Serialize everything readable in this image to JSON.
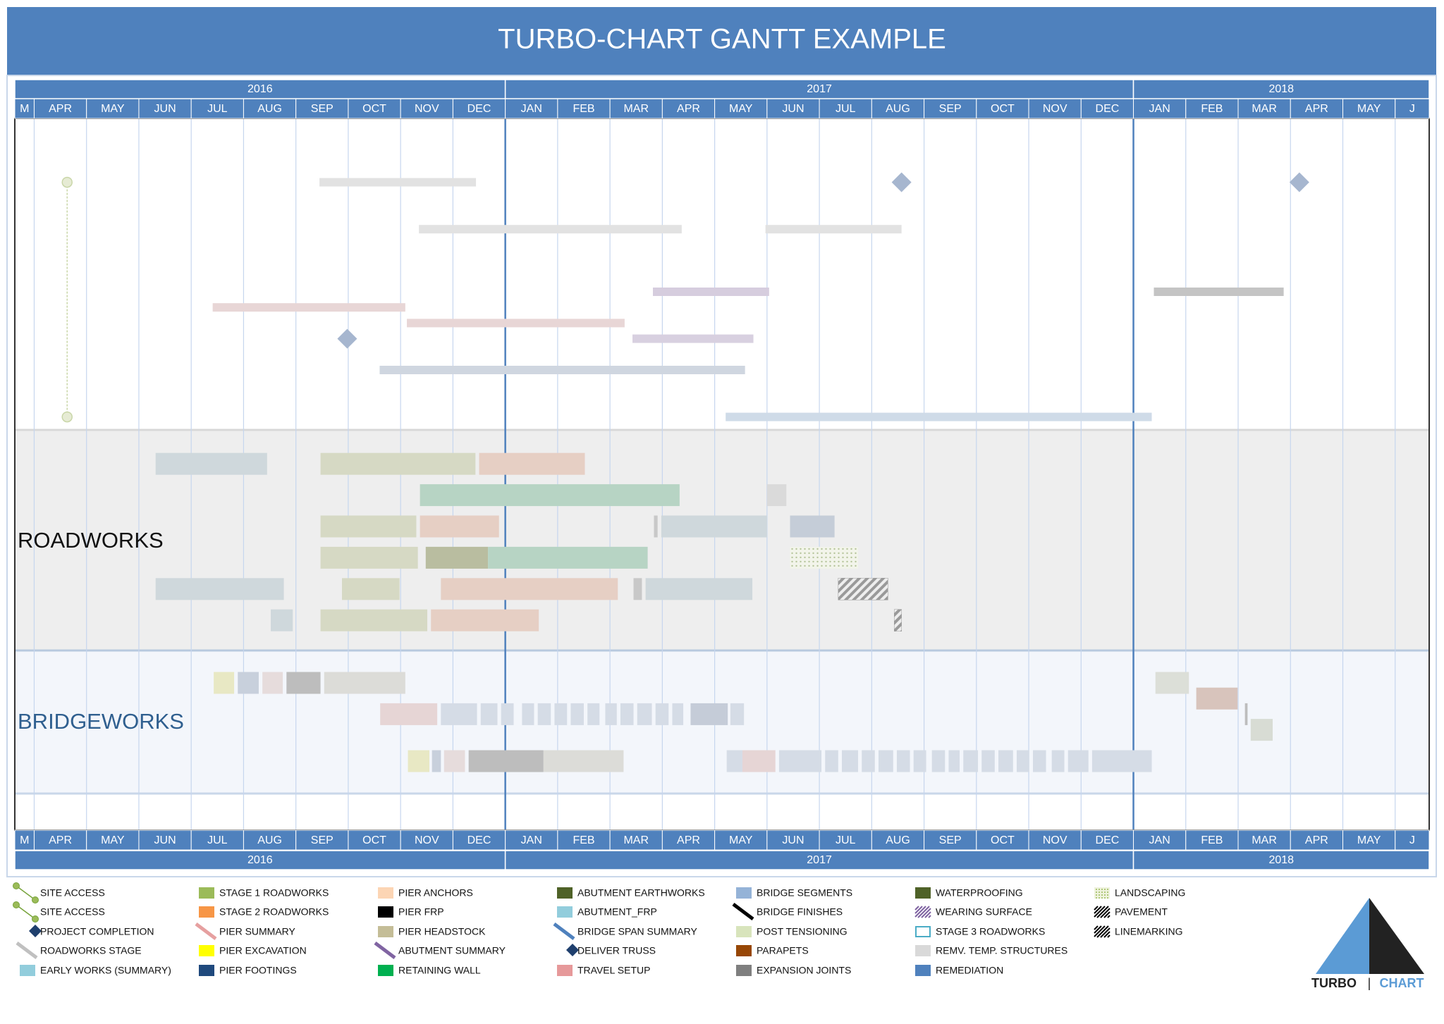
{
  "chart_data": {
    "type": "gantt",
    "title": "TURBO-CHART GANTT EXAMPLE",
    "categories": [
      "M",
      "APR",
      "MAY",
      "JUN",
      "JUL",
      "AUG",
      "SEP",
      "OCT",
      "NOV",
      "DEC",
      "JAN",
      "FEB",
      "MAR",
      "APR",
      "MAY",
      "JUN",
      "JUL",
      "AUG",
      "SEP",
      "OCT",
      "NOV",
      "DEC",
      "JAN",
      "FEB",
      "MAR",
      "APR",
      "MAY",
      "J"
    ],
    "years": [
      "2016",
      "2017",
      "2018"
    ],
    "xlim": [
      0.63,
      27.65
    ],
    "sections": [
      "ROADWORKS",
      "BRIDGEWORKS"
    ],
    "tasks": [
      {
        "kind": "link",
        "start": 1.63,
        "row": 0,
        "row2": 15,
        "color": "#c9d6a8"
      },
      {
        "kind": "bar",
        "row": 0,
        "start": 6.45,
        "end": 9.44,
        "color": "#e2e2e2"
      },
      {
        "kind": "diamond",
        "row": 0,
        "at": 17.57,
        "color": "#a6b6cf"
      },
      {
        "kind": "diamond",
        "row": 0,
        "at": 25.17,
        "color": "#a6b6cf"
      },
      {
        "kind": "bar",
        "row": 3,
        "start": 8.35,
        "end": 13.37,
        "color": "#e2e2e2"
      },
      {
        "kind": "bar",
        "row": 3,
        "start": 14.97,
        "end": 17.57,
        "color": "#e2e2e2"
      },
      {
        "kind": "bar",
        "row": 7,
        "start": 12.82,
        "end": 15.04,
        "color": "#d6cdde"
      },
      {
        "kind": "bar",
        "row": 7,
        "start": 22.39,
        "end": 24.87,
        "color": "#c4c4c4"
      },
      {
        "kind": "bar",
        "row": 8,
        "start": 4.41,
        "end": 8.09,
        "color": "#e8d6d6"
      },
      {
        "kind": "bar",
        "row": 9,
        "start": 8.12,
        "end": 12.28,
        "color": "#e8d6d6"
      },
      {
        "kind": "diamond",
        "row": 10,
        "at": 6.98,
        "color": "#a6b6cf"
      },
      {
        "kind": "bar",
        "row": 10,
        "start": 12.43,
        "end": 14.74,
        "color": "#d8d0e0"
      },
      {
        "kind": "bar",
        "row": 12,
        "start": 7.6,
        "end": 14.58,
        "color": "#cfd6e0"
      },
      {
        "kind": "bar",
        "row": 15,
        "start": 14.21,
        "end": 22.35,
        "color": "#cfdbe8"
      },
      {
        "kind": "bar",
        "row": 18,
        "start": 3.32,
        "end": 5.45,
        "color": "#cfd8dc"
      },
      {
        "kind": "bar",
        "row": 18,
        "start": 6.47,
        "end": 9.43,
        "color": "#d6d9c4"
      },
      {
        "kind": "bar",
        "row": 18,
        "start": 9.5,
        "end": 11.52,
        "color": "#e6cfc4"
      },
      {
        "kind": "bar",
        "row": 20,
        "start": 8.37,
        "end": 13.33,
        "color": "#b7d4c4"
      },
      {
        "kind": "bar",
        "row": 20,
        "start": 15.0,
        "end": 15.37,
        "color": "#dadada"
      },
      {
        "kind": "bar",
        "row": 22,
        "start": 6.47,
        "end": 8.3,
        "color": "#d6d9c4"
      },
      {
        "kind": "bar",
        "row": 22,
        "start": 8.37,
        "end": 9.88,
        "color": "#e6cfc4"
      },
      {
        "kind": "bar",
        "row": 22,
        "start": 12.84,
        "end": 12.91,
        "color": "#c8c8c8"
      },
      {
        "kind": "bar",
        "row": 22,
        "start": 12.98,
        "end": 15.0,
        "color": "#cfd8dc"
      },
      {
        "kind": "bar",
        "row": 22,
        "start": 15.44,
        "end": 16.29,
        "color": "#c5cdd8"
      },
      {
        "kind": "bar",
        "row": 24,
        "start": 6.47,
        "end": 8.33,
        "color": "#d6d9c4"
      },
      {
        "kind": "bar",
        "row": 24,
        "start": 8.48,
        "end": 9.67,
        "color": "#b9bda0"
      },
      {
        "kind": "bar",
        "row": 24,
        "start": 9.67,
        "end": 12.72,
        "color": "#b7d4c4"
      },
      {
        "kind": "dots",
        "row": 24,
        "start": 15.44,
        "end": 16.74,
        "color": "#b5c49a"
      },
      {
        "kind": "bar",
        "row": 26,
        "start": 3.32,
        "end": 5.77,
        "color": "#cfd8dc"
      },
      {
        "kind": "bar",
        "row": 26,
        "start": 6.88,
        "end": 7.98,
        "color": "#d6d9c4"
      },
      {
        "kind": "bar",
        "row": 26,
        "start": 8.77,
        "end": 12.15,
        "color": "#e6cfc4"
      },
      {
        "kind": "bar",
        "row": 26,
        "start": 12.45,
        "end": 12.61,
        "color": "#c8c8c8"
      },
      {
        "kind": "bar",
        "row": 26,
        "start": 12.68,
        "end": 14.72,
        "color": "#cfd8dc"
      },
      {
        "kind": "hatch",
        "row": 26,
        "start": 16.36,
        "end": 17.31,
        "color": "#9a9a9a"
      },
      {
        "kind": "bar",
        "row": 28,
        "start": 5.52,
        "end": 5.94,
        "color": "#cfd8dc"
      },
      {
        "kind": "bar",
        "row": 28,
        "start": 6.47,
        "end": 8.51,
        "color": "#d6d9c4"
      },
      {
        "kind": "bar",
        "row": 28,
        "start": 8.58,
        "end": 10.64,
        "color": "#e6cfc4"
      },
      {
        "kind": "hatch",
        "row": 28,
        "start": 17.43,
        "end": 17.57,
        "color": "#9a9a9a"
      },
      {
        "kind": "bar",
        "row": 32,
        "start": 4.43,
        "end": 4.82,
        "color": "#e8e8c4"
      },
      {
        "kind": "bar",
        "row": 32,
        "start": 4.89,
        "end": 5.29,
        "color": "#c8d0dc"
      },
      {
        "kind": "bar",
        "row": 32,
        "start": 5.36,
        "end": 5.75,
        "color": "#e6dcdc"
      },
      {
        "kind": "bar",
        "row": 32,
        "start": 5.82,
        "end": 6.47,
        "color": "#bdbdbd"
      },
      {
        "kind": "bar",
        "row": 32,
        "start": 6.54,
        "end": 8.09,
        "color": "#dcdcd8"
      },
      {
        "kind": "bar",
        "row": 32,
        "start": 22.42,
        "end": 23.06,
        "color": "#dcdfd8"
      },
      {
        "kind": "bar",
        "row": 33,
        "start": 23.2,
        "end": 23.99,
        "color": "#d8c4bc"
      },
      {
        "kind": "bar",
        "row": 34,
        "start": 7.61,
        "end": 8.7,
        "color": "#e6d5d5"
      },
      {
        "kind": "bar",
        "row": 34,
        "start": 8.77,
        "end": 9.46,
        "color": "#d5dce6"
      },
      {
        "kind": "bar",
        "row": 34,
        "start": 9.53,
        "end": 9.85,
        "color": "#d5dce6"
      },
      {
        "kind": "bar",
        "row": 34,
        "start": 9.92,
        "end": 10.16,
        "color": "#d5dce6"
      },
      {
        "kind": "bar",
        "row": 34,
        "start": 10.32,
        "end": 10.55,
        "color": "#d5dce6"
      },
      {
        "kind": "bar",
        "row": 34,
        "start": 10.62,
        "end": 10.87,
        "color": "#d5dce6"
      },
      {
        "kind": "bar",
        "row": 34,
        "start": 10.94,
        "end": 11.18,
        "color": "#d5dce6"
      },
      {
        "kind": "bar",
        "row": 34,
        "start": 11.25,
        "end": 11.5,
        "color": "#d5dce6"
      },
      {
        "kind": "bar",
        "row": 34,
        "start": 11.57,
        "end": 11.8,
        "color": "#d5dce6"
      },
      {
        "kind": "bar",
        "row": 34,
        "start": 11.91,
        "end": 12.13,
        "color": "#d5dce6"
      },
      {
        "kind": "bar",
        "row": 34,
        "start": 12.2,
        "end": 12.45,
        "color": "#d5dce6"
      },
      {
        "kind": "bar",
        "row": 34,
        "start": 12.52,
        "end": 12.8,
        "color": "#d5dce6"
      },
      {
        "kind": "bar",
        "row": 34,
        "start": 12.87,
        "end": 13.12,
        "color": "#d5dce6"
      },
      {
        "kind": "bar",
        "row": 34,
        "start": 13.19,
        "end": 13.4,
        "color": "#d5dce6"
      },
      {
        "kind": "bar",
        "row": 34,
        "start": 13.54,
        "end": 14.25,
        "color": "#c5ccd8"
      },
      {
        "kind": "bar",
        "row": 34,
        "start": 14.3,
        "end": 14.56,
        "color": "#d5dce6"
      },
      {
        "kind": "bar",
        "row": 34,
        "start": 24.13,
        "end": 24.18,
        "color": "#bdbdbd"
      },
      {
        "kind": "bar",
        "row": 35,
        "start": 24.24,
        "end": 24.66,
        "color": "#d8dcd4"
      },
      {
        "kind": "bar",
        "row": 37,
        "start": 8.14,
        "end": 8.55,
        "color": "#e8e8c4"
      },
      {
        "kind": "bar",
        "row": 37,
        "start": 8.6,
        "end": 8.77,
        "color": "#c8d0dc"
      },
      {
        "kind": "bar",
        "row": 37,
        "start": 8.83,
        "end": 9.23,
        "color": "#e6dcdc"
      },
      {
        "kind": "bar",
        "row": 37,
        "start": 9.3,
        "end": 10.73,
        "color": "#bdbdbd"
      },
      {
        "kind": "bar",
        "row": 37,
        "start": 10.73,
        "end": 12.26,
        "color": "#dcdcd8"
      },
      {
        "kind": "bar",
        "row": 37,
        "start": 14.23,
        "end": 14.53,
        "color": "#d5dce6"
      },
      {
        "kind": "bar",
        "row": 37,
        "start": 14.53,
        "end": 15.16,
        "color": "#e6d5d5"
      },
      {
        "kind": "bar",
        "row": 37,
        "start": 15.23,
        "end": 16.04,
        "color": "#d5dce6"
      },
      {
        "kind": "bar",
        "row": 37,
        "start": 16.11,
        "end": 16.36,
        "color": "#d5dce6"
      },
      {
        "kind": "bar",
        "row": 37,
        "start": 16.43,
        "end": 16.74,
        "color": "#d5dce6"
      },
      {
        "kind": "bar",
        "row": 37,
        "start": 16.81,
        "end": 17.06,
        "color": "#d5dce6"
      },
      {
        "kind": "bar",
        "row": 37,
        "start": 17.13,
        "end": 17.41,
        "color": "#d5dce6"
      },
      {
        "kind": "bar",
        "row": 37,
        "start": 17.48,
        "end": 17.73,
        "color": "#d5dce6"
      },
      {
        "kind": "bar",
        "row": 37,
        "start": 17.8,
        "end": 18.04,
        "color": "#d5dce6"
      },
      {
        "kind": "bar",
        "row": 37,
        "start": 18.15,
        "end": 18.4,
        "color": "#d5dce6"
      },
      {
        "kind": "bar",
        "row": 37,
        "start": 18.47,
        "end": 18.68,
        "color": "#d5dce6"
      },
      {
        "kind": "bar",
        "row": 37,
        "start": 18.75,
        "end": 19.03,
        "color": "#d5dce6"
      },
      {
        "kind": "bar",
        "row": 37,
        "start": 19.1,
        "end": 19.35,
        "color": "#d5dce6"
      },
      {
        "kind": "bar",
        "row": 37,
        "start": 19.42,
        "end": 19.7,
        "color": "#d5dce6"
      },
      {
        "kind": "bar",
        "row": 37,
        "start": 19.77,
        "end": 20.01,
        "color": "#d5dce6"
      },
      {
        "kind": "bar",
        "row": 37,
        "start": 20.08,
        "end": 20.33,
        "color": "#d5dce6"
      },
      {
        "kind": "bar",
        "row": 37,
        "start": 20.44,
        "end": 20.68,
        "color": "#d5dce6"
      },
      {
        "kind": "bar",
        "row": 37,
        "start": 20.75,
        "end": 21.14,
        "color": "#d5dce6"
      },
      {
        "kind": "bar",
        "row": 37,
        "start": 21.21,
        "end": 22.35,
        "color": "#d5dce6"
      }
    ]
  },
  "legend": [
    {
      "label": "SITE ACCESS",
      "icon": "link",
      "color": "#77a33a"
    },
    {
      "label": "SITE ACCESS",
      "icon": "link",
      "color": "#77a33a"
    },
    {
      "label": "PROJECT COMPLETION",
      "icon": "diamond",
      "color": "#1f3f6d"
    },
    {
      "label": "ROADWORKS STAGE",
      "icon": "diag",
      "color": "#c0c0c0"
    },
    {
      "label": "EARLY WORKS (SUMMARY)",
      "icon": "swatch",
      "color": "#92cddc"
    },
    {
      "label": "STAGE 1 ROADWORKS",
      "icon": "swatch",
      "color": "#9bbb59"
    },
    {
      "label": "STAGE 2 ROADWORKS",
      "icon": "swatch",
      "color": "#f79646"
    },
    {
      "label": "PIER SUMMARY",
      "icon": "diag",
      "color": "#e6a0a0"
    },
    {
      "label": "PIER EXCAVATION",
      "icon": "swatch",
      "color": "#ffff00"
    },
    {
      "label": "PIER FOOTINGS",
      "icon": "swatch",
      "color": "#1f497d"
    },
    {
      "label": "PIER ANCHORS",
      "icon": "swatch",
      "color": "#fcd5b4"
    },
    {
      "label": "PIER FRP",
      "icon": "swatch",
      "color": "#000000"
    },
    {
      "label": "PIER HEADSTOCK",
      "icon": "swatch",
      "color": "#c4bd97"
    },
    {
      "label": "ABUTMENT SUMMARY",
      "icon": "diag",
      "color": "#8064a2"
    },
    {
      "label": "RETAINING WALL",
      "icon": "swatch",
      "color": "#00b050"
    },
    {
      "label": "ABUTMENT EARTHWORKS",
      "icon": "swatch",
      "color": "#4f6228"
    },
    {
      "label": "ABUTMENT_FRP",
      "icon": "swatch",
      "color": "#92cddc"
    },
    {
      "label": "BRIDGE SPAN SUMMARY",
      "icon": "diag",
      "color": "#4f81bd"
    },
    {
      "label": "DELIVER TRUSS",
      "icon": "diamond",
      "color": "#1f3f6d"
    },
    {
      "label": "TRAVEL SETUP",
      "icon": "swatch",
      "color": "#e6999a"
    },
    {
      "label": "BRIDGE SEGMENTS",
      "icon": "swatch",
      "color": "#95b3d7"
    },
    {
      "label": "BRIDGE FINISHES",
      "icon": "diag",
      "color": "#000000"
    },
    {
      "label": "POST TENSIONING",
      "icon": "swatch",
      "color": "#d8e4bc"
    },
    {
      "label": "PARAPETS",
      "icon": "swatch",
      "color": "#974706"
    },
    {
      "label": "EXPANSION JOINTS",
      "icon": "swatch",
      "color": "#7f7f7f"
    },
    {
      "label": "WATERPROOFING",
      "icon": "swatch",
      "color": "#4f6228"
    },
    {
      "label": "WEARING SURFACE",
      "icon": "hatch",
      "color": "#8064a2"
    },
    {
      "label": "STAGE 3 ROADWORKS",
      "icon": "outline",
      "color": "#4bacc6"
    },
    {
      "label": "REMV. TEMP. STRUCTURES",
      "icon": "swatch",
      "color": "#d9d9d9"
    },
    {
      "label": "REMEDIATION",
      "icon": "swatch",
      "color": "#4f81bd"
    },
    {
      "label": "LANDSCAPING",
      "icon": "dots",
      "color": "#9bbb59"
    },
    {
      "label": "PAVEMENT",
      "icon": "hatch",
      "color": "#000000"
    },
    {
      "label": "LINEMARKING",
      "icon": "hatch",
      "color": "#000000"
    }
  ],
  "logo": {
    "left": "TURBO",
    "separator": "|",
    "right": "CHART"
  }
}
